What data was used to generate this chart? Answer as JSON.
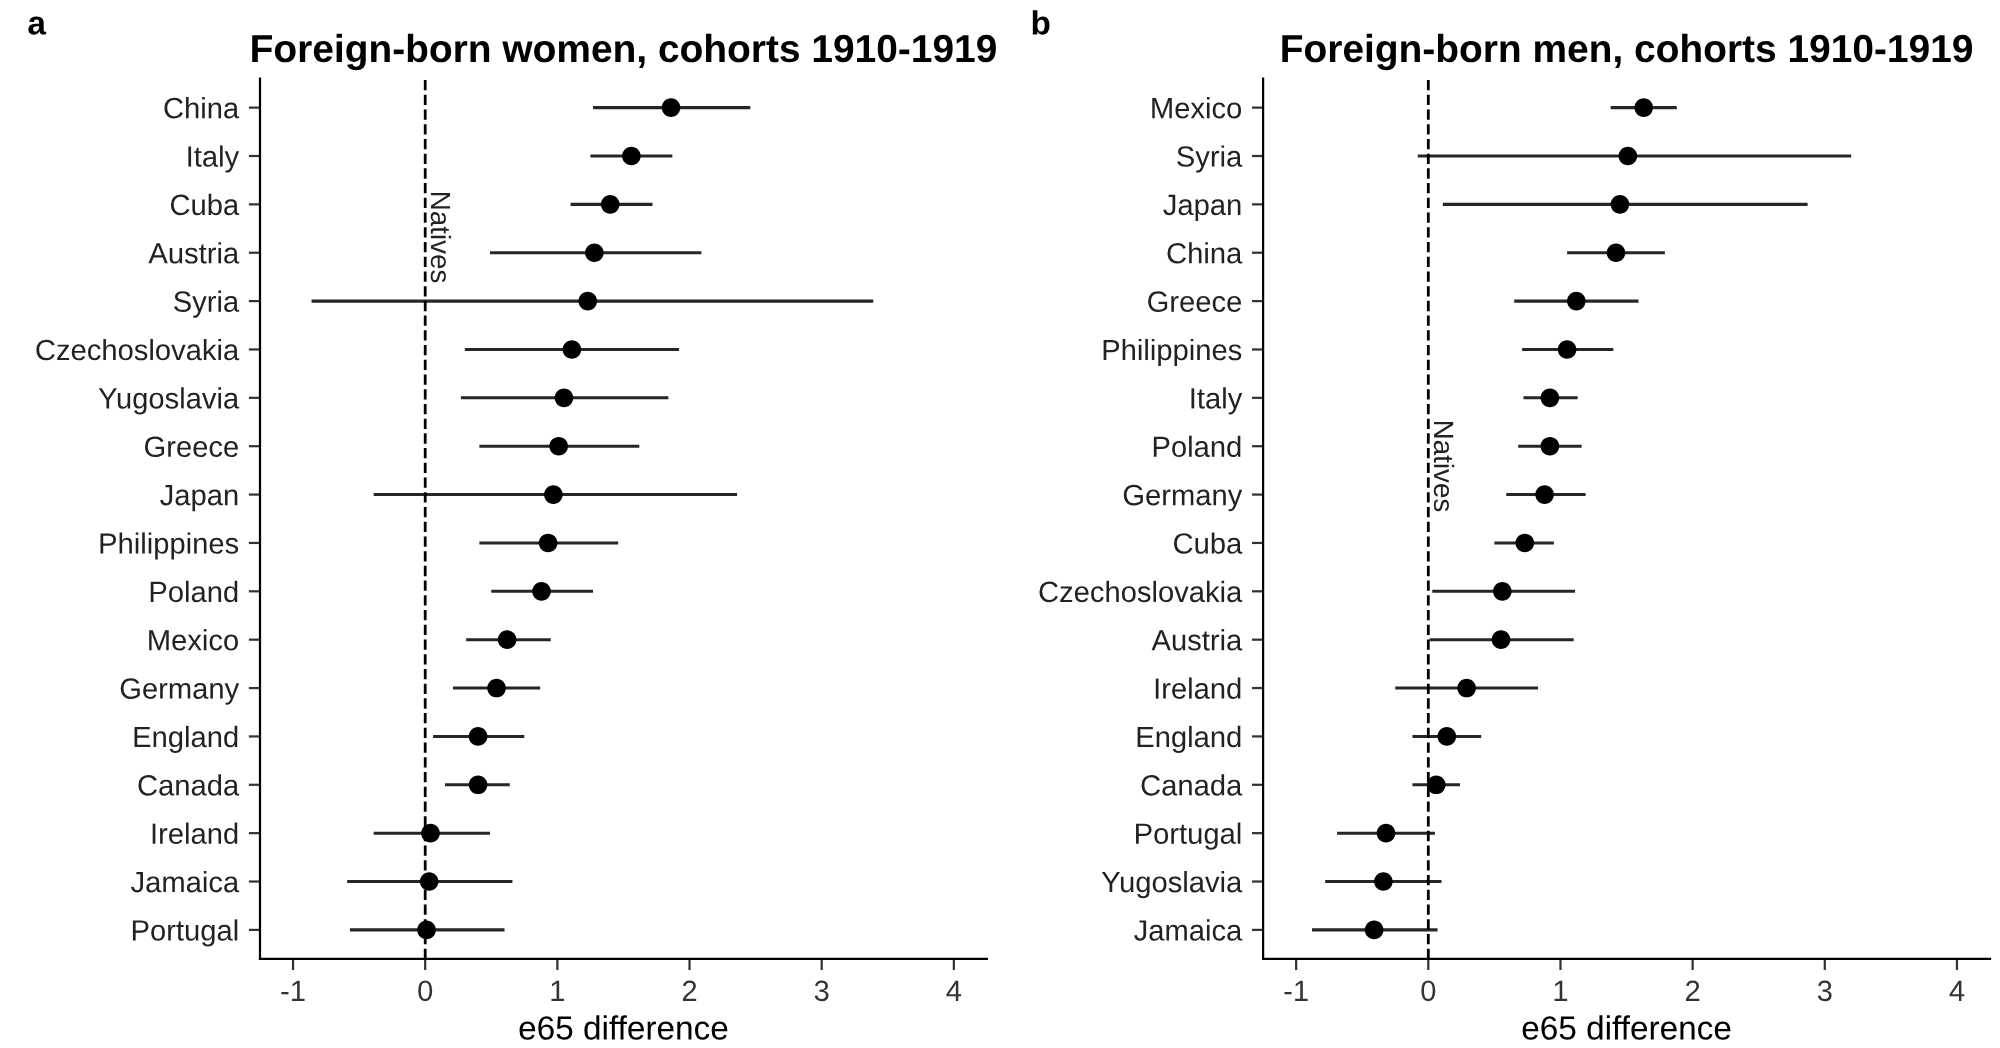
{
  "chart_data": [
    {
      "type": "scatter",
      "orientation": "horizontal",
      "title": "Foreign-born women, cohorts 1910-1919",
      "xlabel": "e65 difference",
      "annotations": [
        "a"
      ],
      "categories": [
        "China",
        "Italy",
        "Cuba",
        "Austria",
        "Syria",
        "Czechoslovakia",
        "Yugoslavia",
        "Greece",
        "Japan",
        "Philippines",
        "Poland",
        "Mexico",
        "Germany",
        "England",
        "Canada",
        "Ireland",
        "Jamaica",
        "Portugal"
      ],
      "series": [
        {
          "color": "#000000",
          "values": [
            1.86,
            1.56,
            1.4,
            1.28,
            1.23,
            1.11,
            1.05,
            1.01,
            0.97,
            0.93,
            0.88,
            0.62,
            0.54,
            0.4,
            0.4,
            0.04,
            0.03,
            0.01
          ],
          "errors": [
            [
              1.27,
              2.46
            ],
            [
              1.25,
              1.87
            ],
            [
              1.1,
              1.72
            ],
            [
              0.49,
              2.09
            ],
            [
              -0.86,
              3.39
            ],
            [
              0.3,
              1.92
            ],
            [
              0.27,
              1.84
            ],
            [
              0.41,
              1.62
            ],
            [
              -0.39,
              2.36
            ],
            [
              0.41,
              1.46
            ],
            [
              0.5,
              1.27
            ],
            [
              0.31,
              0.95
            ],
            [
              0.21,
              0.87
            ],
            [
              0.06,
              0.75
            ],
            [
              0.15,
              0.64
            ],
            [
              -0.39,
              0.49
            ],
            [
              -0.59,
              0.66
            ],
            [
              -0.57,
              0.6
            ]
          ]
        }
      ],
      "xlim": [
        -1.25,
        4.25
      ],
      "xticks": [
        -1,
        0,
        1,
        2,
        3,
        4
      ],
      "marker": "circle",
      "grid": false,
      "legend": false,
      "ref_lines": [
        {
          "axis": "x",
          "value": 0,
          "label": "Natives",
          "line_style": "dashed",
          "color": "#000000"
        }
      ]
    },
    {
      "type": "scatter",
      "orientation": "horizontal",
      "title": "Foreign-born men, cohorts 1910-1919",
      "xlabel": "e65 difference",
      "annotations": [
        "b"
      ],
      "categories": [
        "Mexico",
        "Syria",
        "Japan",
        "China",
        "Greece",
        "Philippines",
        "Italy",
        "Poland",
        "Germany",
        "Cuba",
        "Czechoslovakia",
        "Austria",
        "Ireland",
        "England",
        "Canada",
        "Portugal",
        "Yugoslavia",
        "Jamaica"
      ],
      "series": [
        {
          "color": "#000000",
          "values": [
            1.63,
            1.51,
            1.45,
            1.42,
            1.12,
            1.05,
            0.92,
            0.92,
            0.88,
            0.73,
            0.56,
            0.55,
            0.29,
            0.14,
            0.06,
            -0.32,
            -0.34,
            -0.41
          ],
          "errors": [
            [
              1.38,
              1.88
            ],
            [
              -0.08,
              3.2
            ],
            [
              0.11,
              2.87
            ],
            [
              1.05,
              1.79
            ],
            [
              0.65,
              1.59
            ],
            [
              0.71,
              1.4
            ],
            [
              0.72,
              1.13
            ],
            [
              0.68,
              1.16
            ],
            [
              0.59,
              1.19
            ],
            [
              0.5,
              0.95
            ],
            [
              0.03,
              1.11
            ],
            [
              0.01,
              1.1
            ],
            [
              -0.25,
              0.83
            ],
            [
              -0.12,
              0.4
            ],
            [
              -0.12,
              0.24
            ],
            [
              -0.69,
              0.05
            ],
            [
              -0.78,
              0.1
            ],
            [
              -0.88,
              0.07
            ]
          ]
        }
      ],
      "xlim": [
        -1.25,
        4.25
      ],
      "xticks": [
        -1,
        0,
        1,
        2,
        3,
        4
      ],
      "marker": "circle",
      "grid": false,
      "legend": false,
      "ref_lines": [
        {
          "axis": "x",
          "value": 0,
          "label": "Natives",
          "line_style": "dashed",
          "color": "#000000"
        }
      ]
    }
  ]
}
